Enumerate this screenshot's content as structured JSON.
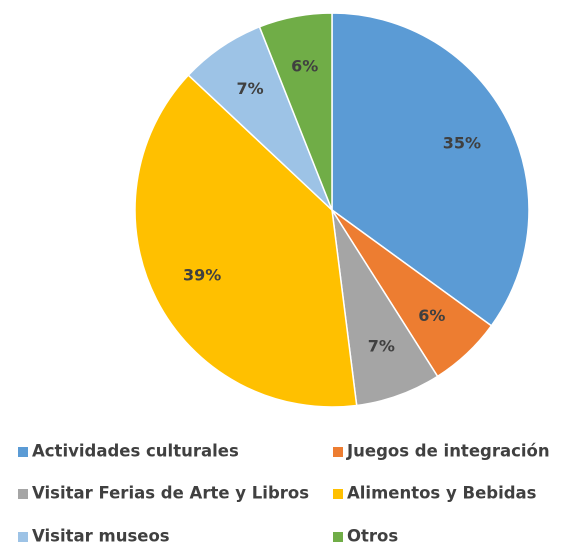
{
  "chart_data": {
    "type": "pie",
    "categories": [
      "Actividades culturales",
      "Juegos de integración",
      "Visitar Ferias de Arte y Libros",
      "Alimentos y Bebidas",
      "Visitar museos",
      "Otros"
    ],
    "values": [
      35,
      6,
      7,
      39,
      7,
      6
    ],
    "value_labels": [
      "35%",
      "6%",
      "7%",
      "39%",
      "7%",
      "6%"
    ],
    "colors": [
      "#5b9bd5",
      "#ed7d31",
      "#a5a5a5",
      "#ffc000",
      "#9dc3e6",
      "#70ad47"
    ],
    "legend": "bottom"
  }
}
